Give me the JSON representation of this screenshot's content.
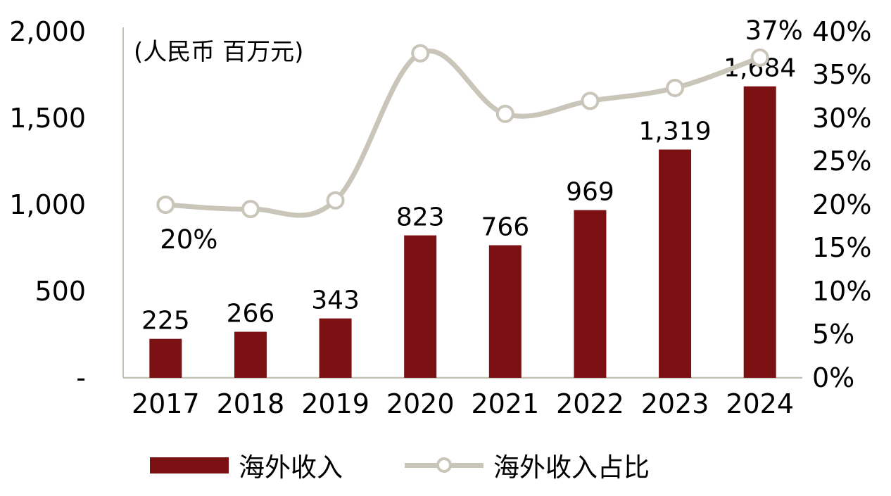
{
  "chart_data": {
    "type": "bar",
    "combo": "bar+line",
    "unit_label": "(人民币 百万元)",
    "categories": [
      "2017",
      "2018",
      "2019",
      "2020",
      "2021",
      "2022",
      "2023",
      "2024"
    ],
    "series": [
      {
        "name": "海外收入",
        "type": "bar",
        "axis": "left",
        "values": [
          225,
          266,
          343,
          823,
          766,
          969,
          1319,
          1684
        ],
        "labels": [
          "225",
          "266",
          "343",
          "823",
          "766",
          "969",
          "1,319",
          "1,684"
        ],
        "color": "#7B1113"
      },
      {
        "name": "海外收入占比",
        "type": "line",
        "axis": "right",
        "values": [
          20,
          19.5,
          20.5,
          37.5,
          30.5,
          32,
          33.5,
          37
        ],
        "color": "#C9C5B8",
        "marker_fill": "#FFFFFF"
      }
    ],
    "annotations": [
      {
        "text": "20%",
        "index": 0,
        "placement": "below"
      },
      {
        "text": "37%",
        "index": 7,
        "placement": "above"
      }
    ],
    "left_axis": {
      "min": 0,
      "max": 2000,
      "tick_values": [
        2000,
        1500,
        1000,
        500,
        0
      ],
      "tick_labels": [
        "2,000",
        "1,500",
        "1,000",
        "500",
        "-"
      ]
    },
    "right_axis": {
      "min": 0,
      "max": 40,
      "tick_values": [
        40,
        35,
        30,
        25,
        20,
        15,
        10,
        5,
        0
      ],
      "tick_labels": [
        "40%",
        "35%",
        "30%",
        "25%",
        "20%",
        "15%",
        "10%",
        "5%",
        "0%"
      ]
    },
    "grid": false,
    "legend_position": "bottom",
    "background": "#FFFFFF",
    "axis_color": "#C4C1B6",
    "text_color": "#000000"
  }
}
